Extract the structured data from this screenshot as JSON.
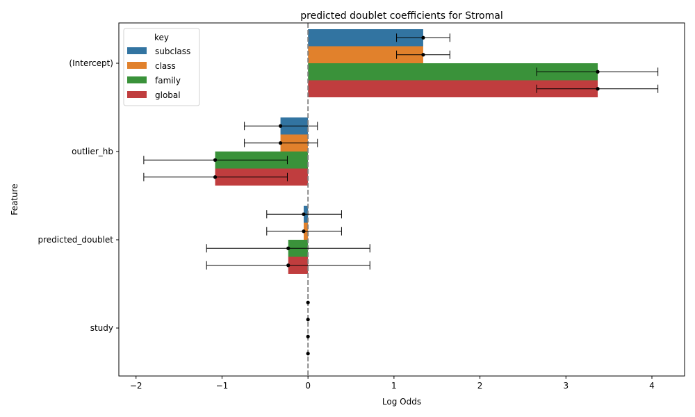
{
  "chart_data": {
    "type": "bar",
    "orientation": "horizontal",
    "title": "predicted doublet coefficients for Stromal",
    "xlabel": "Log Odds",
    "ylabel": "Feature",
    "categories": [
      "(Intercept)",
      "outlier_hb",
      "predicted_doublet",
      "study"
    ],
    "xlim": [
      -2.2,
      4.38
    ],
    "xticks": [
      -2,
      -1,
      0,
      1,
      2,
      3,
      4
    ],
    "grid": false,
    "reference_line": {
      "x": 0,
      "style": "dashed",
      "color": "#808080"
    },
    "legend": {
      "title": "key",
      "placement": "top-left"
    },
    "series": [
      {
        "name": "subclass",
        "color": "#3274a1",
        "values": [
          1.34,
          -0.32,
          -0.05,
          0.0
        ],
        "ci_low": [
          1.03,
          -0.74,
          -0.48,
          0.0
        ],
        "ci_high": [
          1.65,
          0.11,
          0.39,
          0.0
        ]
      },
      {
        "name": "class",
        "color": "#e1812c",
        "values": [
          1.34,
          -0.32,
          -0.05,
          0.0
        ],
        "ci_low": [
          1.03,
          -0.74,
          -0.48,
          0.0
        ],
        "ci_high": [
          1.65,
          0.11,
          0.39,
          0.0
        ]
      },
      {
        "name": "family",
        "color": "#3a923a",
        "values": [
          3.37,
          -1.08,
          -0.23,
          0.0
        ],
        "ci_low": [
          2.66,
          -1.91,
          -1.18,
          0.0
        ],
        "ci_high": [
          4.07,
          -0.24,
          0.72,
          0.0
        ]
      },
      {
        "name": "global",
        "color": "#c03d3e",
        "values": [
          3.37,
          -1.08,
          -0.23,
          0.0
        ],
        "ci_low": [
          2.66,
          -1.91,
          -1.18,
          0.0
        ],
        "ci_high": [
          4.07,
          -0.24,
          0.72,
          0.0
        ]
      }
    ]
  }
}
